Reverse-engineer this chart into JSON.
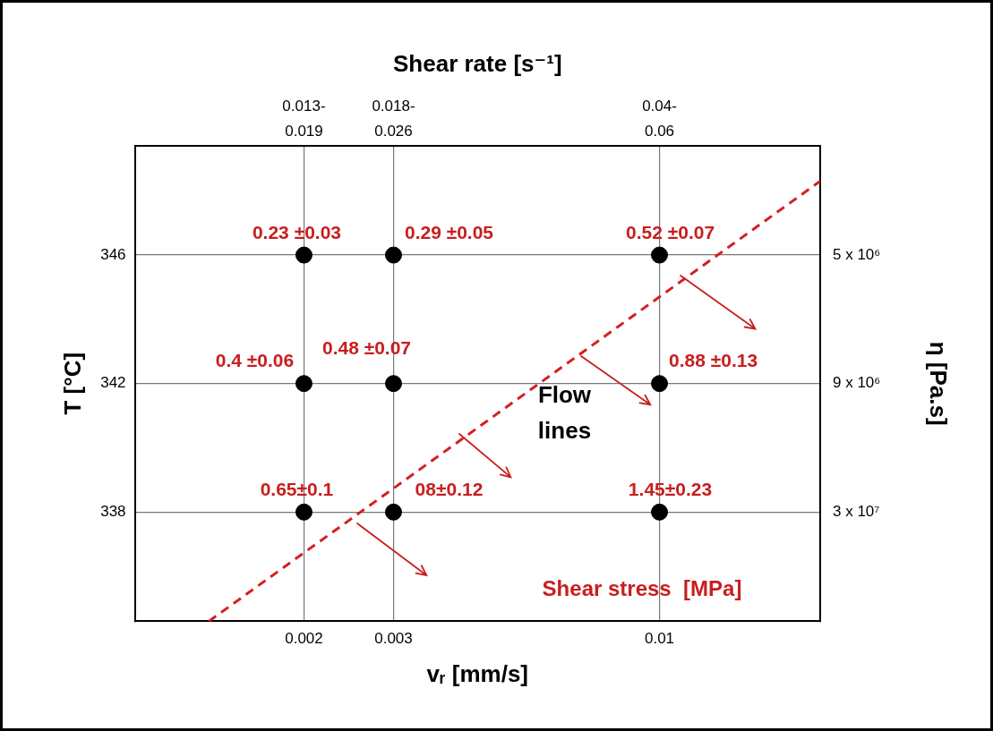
{
  "chart_data": {
    "type": "scatter",
    "xlabel": "vᵣ [mm/s]",
    "ylabel": "T [°C]",
    "y2label": "η [Pa.s]",
    "x2label": "Shear rate [s⁻¹]",
    "log": "x",
    "grid": true,
    "legend": false,
    "marker": "circle",
    "xlim": [
      0.00093,
      0.0207
    ],
    "xticks": [
      0.002,
      0.003,
      0.01
    ],
    "ylim": [
      334.6,
      349.4
    ],
    "yticks": [
      338,
      342,
      346
    ],
    "series": [
      {
        "type": "scatter",
        "color": "#000000",
        "x": [
          0.002,
          0.003,
          0.01,
          0.002,
          0.003,
          0.01,
          0.002,
          0.003,
          0.01
        ],
        "values": [
          346,
          346,
          346,
          342,
          342,
          342,
          338,
          338,
          338
        ],
        "value_labels": [
          "0.23 ±0.03",
          "0.29 ±0.05",
          "0.52 ±0.07",
          "0.4 ±0.06",
          "0.48 ±0.07",
          "0.88 ±0.13",
          "0.65±0.1",
          "08±0.12",
          "1.45±0.23"
        ]
      },
      {
        "type": "line",
        "color": "#d42020",
        "line_style": "dashed",
        "marker": "none",
        "x": [
          0.0013,
          0.0207
        ],
        "values": [
          334.6,
          348.3
        ]
      }
    ],
    "annotations": [
      "Flow lines",
      "Shear stress  [MPa]",
      "0.013-0.019",
      "0.018-0.026",
      "0.04-0.06",
      "5 x 10⁶",
      "9 x 10⁶",
      "3 x 10⁷"
    ]
  }
}
